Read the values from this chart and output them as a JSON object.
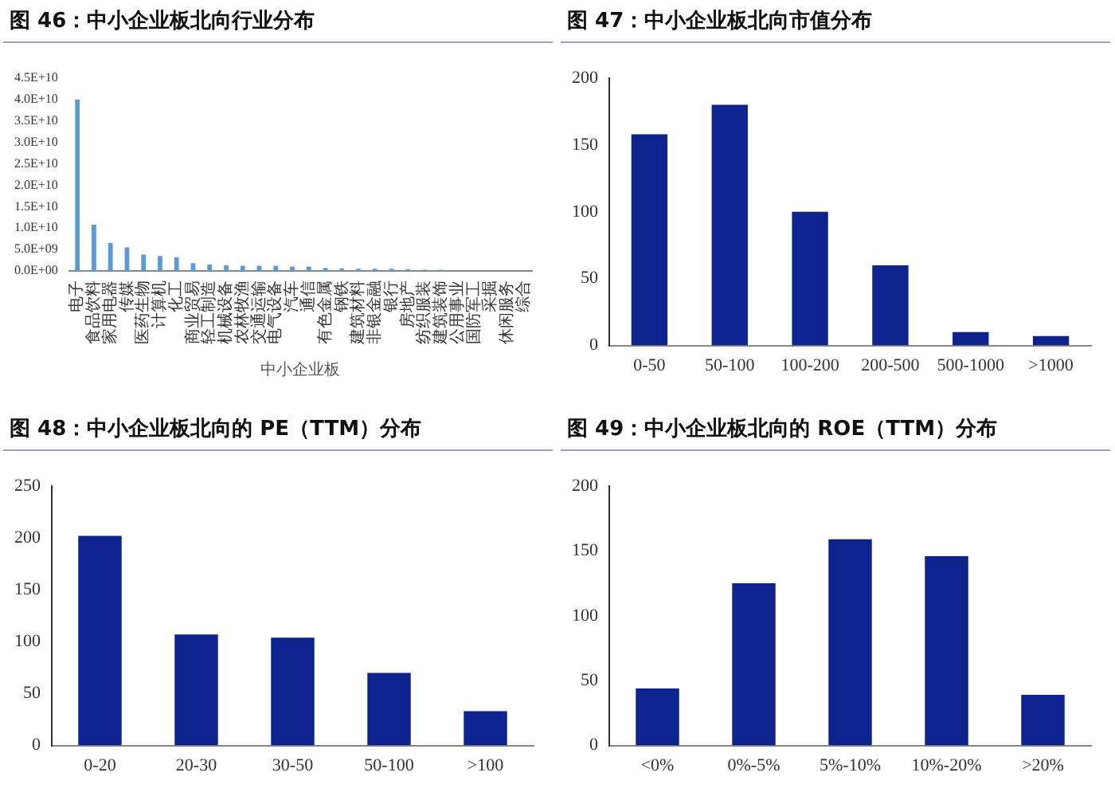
{
  "chart_data": [
    {
      "type": "bar",
      "title": "图 46：中小企业板北向行业分布",
      "xlabel": "中小企业板",
      "categories": [
        "电子",
        "食品饮料",
        "家用电器",
        "传媒",
        "医药生物",
        "计算机",
        "化工",
        "商业贸易",
        "轻工制造",
        "机械设备",
        "农林牧渔",
        "交通运输",
        "电气设备",
        "汽车",
        "通信",
        "有色金属",
        "钢铁",
        "建筑材料",
        "非银金融",
        "银行",
        "房地产",
        "纺织服装",
        "建筑装饰",
        "公用事业",
        "国防军工",
        "采掘",
        "休闲服务",
        "综合"
      ],
      "values": [
        40000000000,
        10800000000,
        6500000000,
        5500000000,
        3800000000,
        3500000000,
        3200000000,
        1800000000,
        1500000000,
        1300000000,
        1200000000,
        1200000000,
        1200000000,
        1000000000,
        1000000000,
        700000000,
        600000000,
        500000000,
        500000000,
        500000000,
        400000000,
        300000000,
        300000000,
        null,
        null,
        null,
        0,
        0
      ],
      "color": "#5b9bd5",
      "ylim": [
        0,
        45000000000
      ],
      "yticks": [
        {
          "value": 0,
          "label": "0.0E+00"
        },
        {
          "value": 5000000000,
          "label": "5.0E+09"
        },
        {
          "value": 10000000000,
          "label": "1.0E+10"
        },
        {
          "value": 15000000000,
          "label": "1.5E+10"
        },
        {
          "value": 20000000000,
          "label": "2.0E+10"
        },
        {
          "value": 25000000000,
          "label": "2.5E+10"
        },
        {
          "value": 30000000000,
          "label": "3.0E+10"
        },
        {
          "value": 35000000000,
          "label": "3.5E+10"
        },
        {
          "value": 40000000000,
          "label": "4.0E+10"
        },
        {
          "value": 45000000000,
          "label": "4.5E+10"
        }
      ]
    },
    {
      "type": "bar",
      "title": "图 47：中小企业板北向市值分布",
      "categories": [
        "0-50",
        "50-100",
        "100-200",
        "200-500",
        "500-1000",
        ">1000"
      ],
      "values": [
        158,
        180,
        100,
        60,
        10,
        7
      ],
      "color": "#0e238e",
      "ylim": [
        0,
        200
      ],
      "yticks": [
        0,
        50,
        100,
        150,
        200
      ]
    },
    {
      "type": "bar",
      "title": "图 48：中小企业板北向的 PE（TTM）分布",
      "categories": [
        "0-20",
        "20-30",
        "30-50",
        "50-100",
        ">100"
      ],
      "values": [
        202,
        107,
        104,
        70,
        33
      ],
      "color": "#0e238e",
      "ylim": [
        0,
        250
      ],
      "yticks": [
        0,
        50,
        100,
        150,
        200,
        250
      ]
    },
    {
      "type": "bar",
      "title": "图 49：中小企业板北向的 ROE（TTM）分布",
      "categories": [
        "<0%",
        "0%-5%",
        "5%-10%",
        "10%-20%",
        ">20%"
      ],
      "values": [
        44,
        125,
        159,
        146,
        39
      ],
      "color": "#0e238e",
      "ylim": [
        0,
        200
      ],
      "yticks": [
        0,
        50,
        100,
        150,
        200
      ]
    }
  ]
}
